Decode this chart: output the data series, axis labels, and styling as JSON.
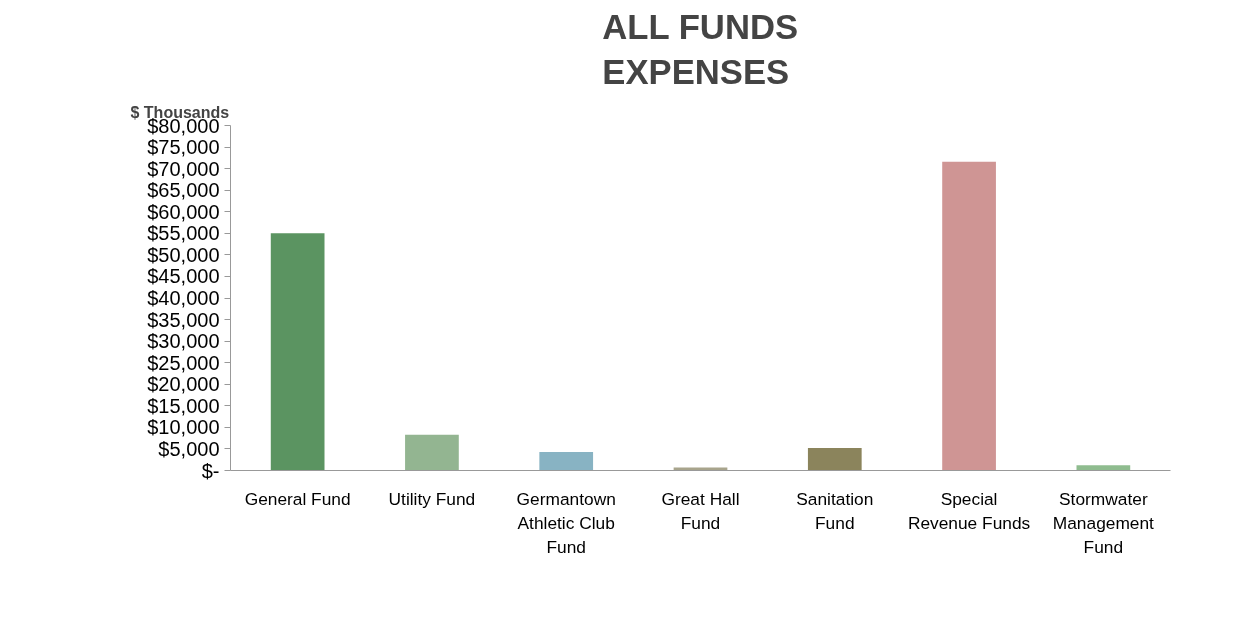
{
  "chart_data": {
    "type": "bar",
    "title": "ALL FUNDS\nEXPENSES",
    "ylabel": "$ Thousands",
    "categories": [
      "General Fund",
      "Utility Fund",
      "Germantown Athletic Club Fund",
      "Great Hall Fund",
      "Sanitation Fund",
      "Special Revenue Funds",
      "Stormwater Management Fund"
    ],
    "values": [
      55000,
      8300,
      4300,
      700,
      5200,
      71600,
      1200
    ],
    "colors": [
      "#5b9461",
      "#93b591",
      "#88b3c3",
      "#a8a48c",
      "#8b845c",
      "#cf9594",
      "#8fbc8f"
    ],
    "ylim": [
      0,
      80000
    ],
    "yticks": [
      {
        "value": 0,
        "label": "$-"
      },
      {
        "value": 5000,
        "label": "$5,000"
      },
      {
        "value": 10000,
        "label": "$10,000"
      },
      {
        "value": 15000,
        "label": "$15,000"
      },
      {
        "value": 20000,
        "label": "$20,000"
      },
      {
        "value": 25000,
        "label": "$25,000"
      },
      {
        "value": 30000,
        "label": "$30,000"
      },
      {
        "value": 35000,
        "label": "$35,000"
      },
      {
        "value": 40000,
        "label": "$40,000"
      },
      {
        "value": 45000,
        "label": "$45,000"
      },
      {
        "value": 50000,
        "label": "$50,000"
      },
      {
        "value": 55000,
        "label": "$55,000"
      },
      {
        "value": 60000,
        "label": "$60,000"
      },
      {
        "value": 65000,
        "label": "$65,000"
      },
      {
        "value": 70000,
        "label": "$70,000"
      },
      {
        "value": 75000,
        "label": "$75,000"
      },
      {
        "value": 80000,
        "label": "$80,000"
      }
    ],
    "grid": false
  }
}
